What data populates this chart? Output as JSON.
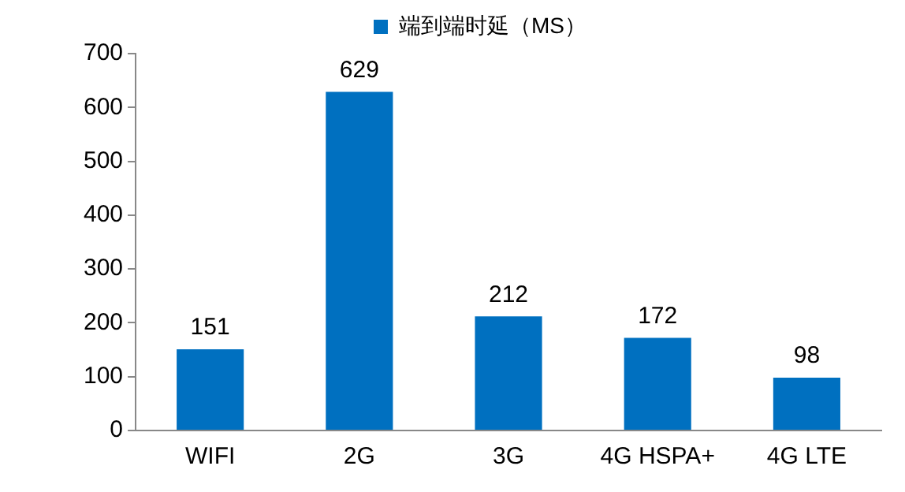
{
  "chart_data": {
    "type": "bar",
    "categories": [
      "WIFI",
      "2G",
      "3G",
      "4G HSPA+",
      "4G LTE"
    ],
    "series": [
      {
        "name": "端到端时延（MS）",
        "color": "#0070c0",
        "values": [
          151,
          629,
          212,
          172,
          98
        ]
      }
    ],
    "ylim": [
      0,
      700
    ],
    "yticks": [
      0,
      100,
      200,
      300,
      400,
      500,
      600,
      700
    ],
    "grid": false,
    "legend": "top",
    "data_labels": true
  }
}
